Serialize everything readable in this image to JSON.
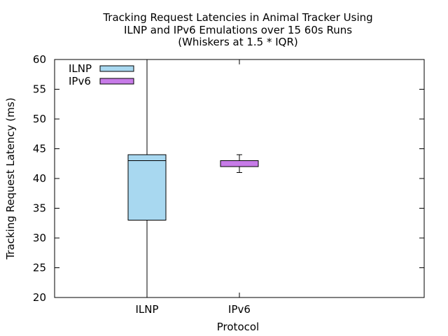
{
  "chart_data": {
    "type": "boxplot",
    "title_lines": [
      "Tracking Request Latencies in Animal Tracker Using",
      "ILNP and IPv6 Emulations over 15 60s Runs",
      "(Whiskers at 1.5 * IQR)"
    ],
    "xlabel": "Protocol",
    "ylabel": "Tracking Request Latency (ms)",
    "ylim": [
      20,
      60
    ],
    "yticks": [
      20,
      25,
      30,
      35,
      40,
      45,
      50,
      55,
      60
    ],
    "categories": [
      "ILNP",
      "IPv6"
    ],
    "legend_position": "top-left",
    "grid": false,
    "series": [
      {
        "name": "ILNP",
        "color": "#a8d8f0",
        "whisker_low": 20,
        "q1": 33,
        "median": 43,
        "q3": 44,
        "whisker_high": 60
      },
      {
        "name": "IPv6",
        "color": "#c77be8",
        "whisker_low": 41,
        "q1": 42,
        "median": 42,
        "q3": 43,
        "whisker_high": 44
      }
    ]
  }
}
